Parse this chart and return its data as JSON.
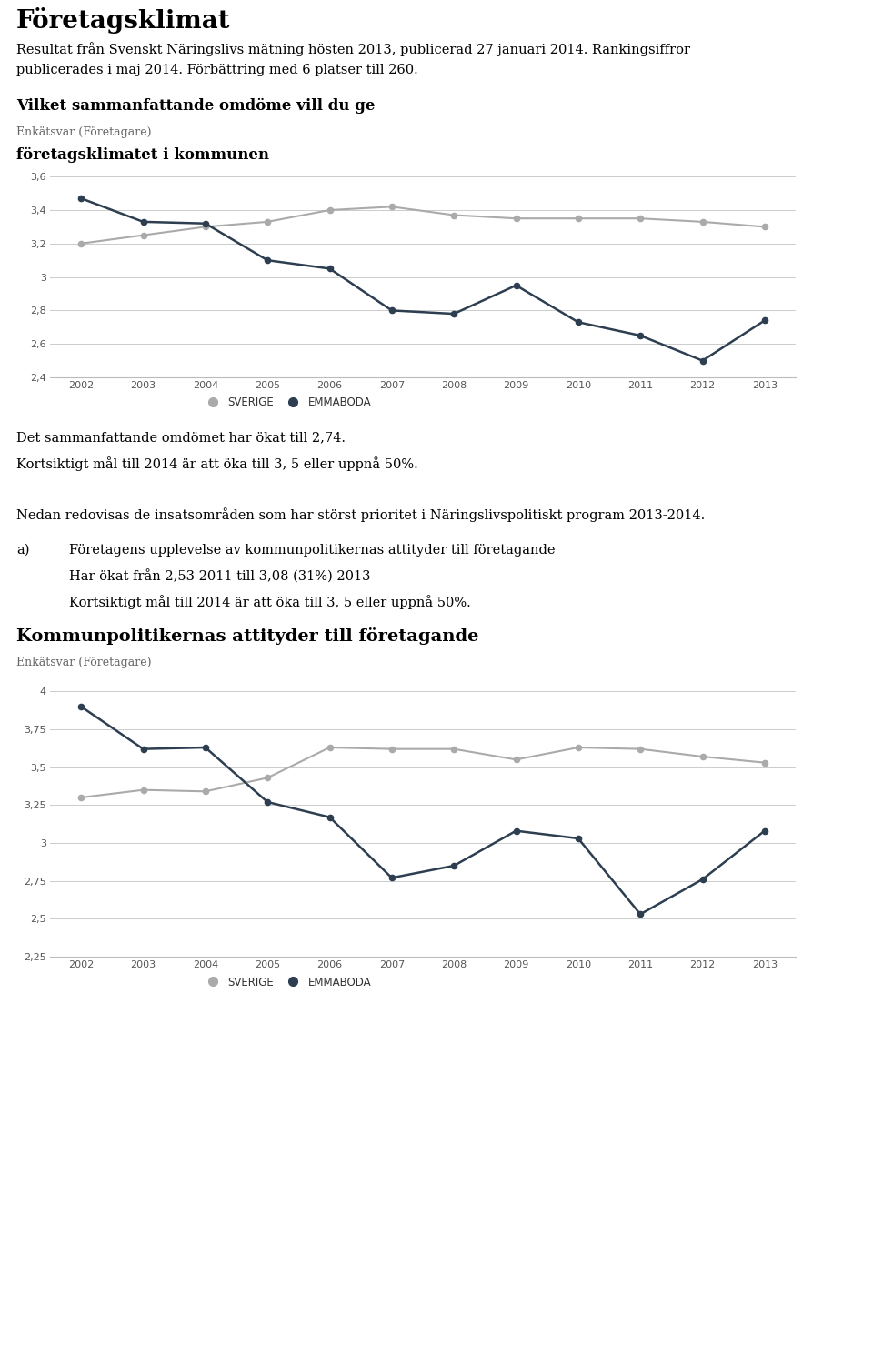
{
  "title": "Företagsklimat",
  "intro_text1": "Resultat från Svenskt Näringslivs mätning hösten 2013, publicerad 27 januari 2014. Rankingsiffror",
  "intro_text2": "publicerades i maj 2014. Förbättring med 6 platser till 260.",
  "chart1_title_bold": "Vilket sammanfattande omdöme vill du ge",
  "chart1_subtitle_small": "Enkätsvar (Företagare)",
  "chart1_subtitle_bold": "företagsklimatet i kommunen",
  "chart1_years": [
    2002,
    2003,
    2004,
    2005,
    2006,
    2007,
    2008,
    2009,
    2010,
    2011,
    2012,
    2013
  ],
  "chart1_sverige": [
    3.2,
    3.25,
    3.3,
    3.33,
    3.4,
    3.42,
    3.37,
    3.35,
    3.35,
    3.35,
    3.33,
    3.3
  ],
  "chart1_emmaboda": [
    3.47,
    3.33,
    3.32,
    3.1,
    3.05,
    2.8,
    2.78,
    2.95,
    2.73,
    2.65,
    2.5,
    2.74
  ],
  "chart1_ylim": [
    2.4,
    3.65
  ],
  "chart1_yticks": [
    2.4,
    2.6,
    2.8,
    3.0,
    3.2,
    3.4,
    3.6
  ],
  "chart1_ytick_labels": [
    "2,4",
    "2,6",
    "2,8",
    "3",
    "3,2",
    "3,4",
    "3,6"
  ],
  "text_after_chart1_line1": "Det sammanfattande omdömet har ökat till 2,74.",
  "text_after_chart1_line2": "Kortsiktigt mål till 2014 är att öka till 3, 5 eller uppnå 50%.",
  "text_nedan": "Nedan redovisas de insatsområden som har störst prioritet i Näringslivspolitiskt program 2013-2014.",
  "section_a_label": "a)",
  "section_a_text1": "Företagens upplevelse av kommunpolitikernas attityder till företagande",
  "section_a_text2": "Har ökat från 2,53 2011 till 3,08 (31%) 2013",
  "section_a_text3": "Kortsiktigt mål till 2014 är att öka till 3, 5 eller uppnå 50%.",
  "chart2_title_bold": "Kommunpolitikernas attityder till företagande",
  "chart2_subtitle_small": "Enkätsvar (Företagare)",
  "chart2_years": [
    2002,
    2003,
    2004,
    2005,
    2006,
    2007,
    2008,
    2009,
    2010,
    2011,
    2012,
    2013
  ],
  "chart2_sverige": [
    3.3,
    3.35,
    3.34,
    3.43,
    3.63,
    3.62,
    3.62,
    3.55,
    3.63,
    3.62,
    3.57,
    3.53
  ],
  "chart2_emmaboda": [
    3.9,
    3.62,
    3.63,
    3.27,
    3.17,
    2.77,
    2.85,
    3.08,
    3.03,
    2.53,
    2.76,
    3.08
  ],
  "chart2_ylim": [
    2.25,
    4.05
  ],
  "chart2_yticks": [
    2.25,
    2.5,
    2.75,
    3.0,
    3.25,
    3.5,
    3.75,
    4.0
  ],
  "chart2_ytick_labels": [
    "2,25",
    "2,5",
    "2,75",
    "3",
    "3,25",
    "3,5",
    "3,75",
    "4"
  ],
  "color_sverige": "#aaaaaa",
  "color_emmaboda": "#2c3e50",
  "color_grid": "#cccccc",
  "background_color": "#ffffff",
  "legend_bg": "#e0e0e0"
}
